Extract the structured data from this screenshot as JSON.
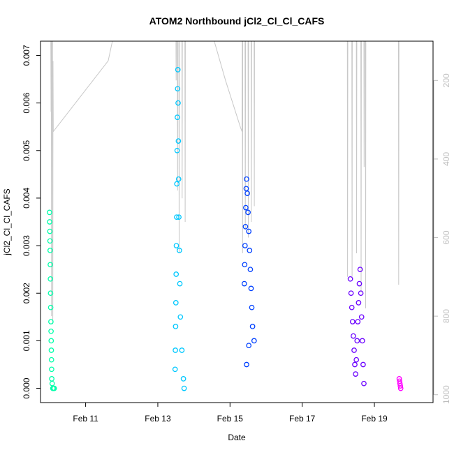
{
  "chart_data": {
    "type": "scatter",
    "title": "ATOM2 Northbound jCl2_Cl_Cl_CAFS",
    "xlabel": "Date",
    "ylabel": "jCl2_Cl_Cl_CAFS",
    "xlim": [
      "2016-02-09 18:00",
      "2016-02-20 15:00"
    ],
    "ylim": [
      -0.0003,
      0.0073
    ],
    "x_ticks": [
      {
        "label": "Feb 11",
        "value": "2016-02-11"
      },
      {
        "label": "Feb 13",
        "value": "2016-02-13"
      },
      {
        "label": "Feb 15",
        "value": "2016-02-15"
      },
      {
        "label": "Feb 17",
        "value": "2016-02-17"
      },
      {
        "label": "Feb 19",
        "value": "2016-02-19"
      }
    ],
    "y_ticks": [
      "0.000",
      "0.001",
      "0.002",
      "0.003",
      "0.004",
      "0.005",
      "0.006",
      "0.007"
    ],
    "right_axis": {
      "reversed": true,
      "ylim": [
        1020,
        100
      ],
      "ticks": [
        "200",
        "400",
        "600",
        "800",
        "1000"
      ],
      "color": "#bebebe"
    },
    "grid": false,
    "legend": "none",
    "series": [
      {
        "color": "#00ffaa",
        "points": [
          [
            "2016-02-10 00:00",
            0.0037
          ],
          [
            "2016-02-10 00:06",
            0.0035
          ],
          [
            "2016-02-10 00:12",
            0.0033
          ],
          [
            "2016-02-10 00:18",
            0.0031
          ],
          [
            "2016-02-10 00:24",
            0.0029
          ],
          [
            "2016-02-10 00:30",
            0.0026
          ],
          [
            "2016-02-10 00:36",
            0.0023
          ],
          [
            "2016-02-10 00:42",
            0.002
          ],
          [
            "2016-02-10 00:48",
            0.0017
          ],
          [
            "2016-02-10 00:54",
            0.0014
          ],
          [
            "2016-02-10 01:00",
            0.0012
          ],
          [
            "2016-02-10 01:06",
            0.001
          ],
          [
            "2016-02-10 01:12",
            0.0008
          ],
          [
            "2016-02-10 01:18",
            0.0006
          ],
          [
            "2016-02-10 01:24",
            0.0004
          ],
          [
            "2016-02-10 01:30",
            0.0002
          ],
          [
            "2016-02-10 01:45",
            0.0001
          ],
          [
            "2016-02-10 02:10",
            0.0
          ],
          [
            "2016-02-10 02:40",
            0.0
          ],
          [
            "2016-02-10 03:10",
            0.0
          ]
        ]
      },
      {
        "color": "#00c8ff",
        "points": [
          [
            "2016-02-13 11:30",
            0.0004
          ],
          [
            "2016-02-13 11:40",
            0.0008
          ],
          [
            "2016-02-13 11:50",
            0.0013
          ],
          [
            "2016-02-13 12:00",
            0.0018
          ],
          [
            "2016-02-13 12:10",
            0.0024
          ],
          [
            "2016-02-13 12:20",
            0.003
          ],
          [
            "2016-02-13 12:30",
            0.0036
          ],
          [
            "2016-02-13 12:40",
            0.0043
          ],
          [
            "2016-02-13 12:50",
            0.005
          ],
          [
            "2016-02-13 13:00",
            0.0057
          ],
          [
            "2016-02-13 13:10",
            0.0063
          ],
          [
            "2016-02-13 13:20",
            0.0067
          ],
          [
            "2016-02-13 13:30",
            0.006
          ],
          [
            "2016-02-13 13:40",
            0.0052
          ],
          [
            "2016-02-13 13:50",
            0.0044
          ],
          [
            "2016-02-13 14:00",
            0.0036
          ],
          [
            "2016-02-13 14:20",
            0.0029
          ],
          [
            "2016-02-13 14:40",
            0.0022
          ],
          [
            "2016-02-13 15:00",
            0.0015
          ],
          [
            "2016-02-13 16:00",
            0.0008
          ],
          [
            "2016-02-13 17:00",
            0.0002
          ],
          [
            "2016-02-13 17:30",
            0.0
          ]
        ]
      },
      {
        "color": "#0040ff",
        "points": [
          [
            "2016-02-15 09:30",
            0.0022
          ],
          [
            "2016-02-15 09:45",
            0.0026
          ],
          [
            "2016-02-15 10:00",
            0.003
          ],
          [
            "2016-02-15 10:15",
            0.0034
          ],
          [
            "2016-02-15 10:30",
            0.0038
          ],
          [
            "2016-02-15 10:45",
            0.0042
          ],
          [
            "2016-02-15 11:00",
            0.0044
          ],
          [
            "2016-02-15 11:30",
            0.0041
          ],
          [
            "2016-02-15 12:00",
            0.0037
          ],
          [
            "2016-02-15 12:30",
            0.0033
          ],
          [
            "2016-02-15 13:00",
            0.0029
          ],
          [
            "2016-02-15 13:30",
            0.0025
          ],
          [
            "2016-02-15 14:00",
            0.0021
          ],
          [
            "2016-02-15 14:30",
            0.0017
          ],
          [
            "2016-02-15 15:00",
            0.0013
          ],
          [
            "2016-02-15 16:00",
            0.001
          ],
          [
            "2016-02-15 11:00",
            0.0005
          ],
          [
            "2016-02-15 12:30",
            0.0009
          ]
        ]
      },
      {
        "color": "#6a00ff",
        "points": [
          [
            "2016-02-18 08:00",
            0.0023
          ],
          [
            "2016-02-18 08:30",
            0.002
          ],
          [
            "2016-02-18 09:00",
            0.0017
          ],
          [
            "2016-02-18 09:30",
            0.0014
          ],
          [
            "2016-02-18 10:00",
            0.0011
          ],
          [
            "2016-02-18 10:30",
            0.0008
          ],
          [
            "2016-02-18 11:00",
            0.0005
          ],
          [
            "2016-02-18 11:30",
            0.0003
          ],
          [
            "2016-02-18 12:00",
            0.0006
          ],
          [
            "2016-02-18 12:30",
            0.001
          ],
          [
            "2016-02-18 13:00",
            0.0014
          ],
          [
            "2016-02-18 13:30",
            0.0018
          ],
          [
            "2016-02-18 14:00",
            0.0022
          ],
          [
            "2016-02-18 14:30",
            0.0025
          ],
          [
            "2016-02-18 15:00",
            0.002
          ],
          [
            "2016-02-18 15:30",
            0.0015
          ],
          [
            "2016-02-18 16:00",
            0.001
          ],
          [
            "2016-02-18 16:30",
            0.0005
          ],
          [
            "2016-02-18 17:00",
            0.0001
          ]
        ]
      },
      {
        "color": "#ff00ff",
        "points": [
          [
            "2016-02-19 16:30",
            0.0002
          ],
          [
            "2016-02-19 16:45",
            0.00015
          ],
          [
            "2016-02-19 17:00",
            0.0001
          ],
          [
            "2016-02-19 17:15",
            5e-05
          ],
          [
            "2016-02-19 17:30",
            0.0
          ]
        ]
      }
    ],
    "altitude_line": {
      "color": "#c8c8c8",
      "points": [
        [
          "2016-02-10 00:50",
          80
        ],
        [
          "2016-02-10 01:00",
          280
        ],
        [
          "2016-02-10 01:10",
          90
        ],
        [
          "2016-02-10 01:20",
          800
        ],
        [
          "2016-02-10 01:30",
          110
        ],
        [
          "2016-02-10 02:00",
          90
        ],
        [
          "2016-02-10 02:10",
          820
        ],
        [
          "2016-02-10 02:20",
          150
        ],
        [
          "2016-02-10 02:30",
          330
        ],
        [
          "2016-02-11 15:00",
          150
        ],
        [
          "2016-02-11 20:00",
          60
        ],
        [
          "2016-02-13 12:00",
          60
        ],
        [
          "2016-02-13 12:10",
          200
        ],
        [
          "2016-02-13 12:20",
          60
        ],
        [
          "2016-02-13 13:00",
          80
        ],
        [
          "2016-02-13 13:10",
          480
        ],
        [
          "2016-02-13 13:20",
          60
        ],
        [
          "2016-02-13 14:00",
          60
        ],
        [
          "2016-02-13 14:10",
          640
        ],
        [
          "2016-02-13 14:20",
          90
        ],
        [
          "2016-02-13 16:00",
          60
        ],
        [
          "2016-02-13 16:10",
          500
        ],
        [
          "2016-02-13 16:20",
          60
        ],
        [
          "2016-02-13 18:00",
          80
        ],
        [
          "2016-02-13 18:10",
          560
        ],
        [
          "2016-02-13 18:20",
          80
        ],
        [
          "2016-02-14 12:00",
          80
        ],
        [
          "2016-02-14 21:00",
          200
        ],
        [
          "2016-02-15 07:00",
          320
        ],
        [
          "2016-02-15 08:00",
          330
        ],
        [
          "2016-02-15 08:10",
          80
        ],
        [
          "2016-02-15 08:20",
          640
        ],
        [
          "2016-02-15 08:30",
          80
        ],
        [
          "2016-02-15 10:00",
          80
        ],
        [
          "2016-02-15 10:10",
          580
        ],
        [
          "2016-02-15 10:20",
          80
        ],
        [
          "2016-02-15 12:00",
          80
        ],
        [
          "2016-02-15 12:10",
          600
        ],
        [
          "2016-02-15 12:20",
          80
        ],
        [
          "2016-02-15 14:00",
          80
        ],
        [
          "2016-02-15 14:10",
          560
        ],
        [
          "2016-02-15 14:20",
          80
        ],
        [
          "2016-02-15 16:00",
          80
        ],
        [
          "2016-02-15 16:10",
          520
        ],
        [
          "2016-02-15 16:20",
          80
        ],
        [
          "2016-02-18 06:00",
          80
        ],
        [
          "2016-02-18 06:10",
          700
        ],
        [
          "2016-02-18 06:20",
          80
        ],
        [
          "2016-02-18 09:00",
          80
        ],
        [
          "2016-02-18 09:10",
          700
        ],
        [
          "2016-02-18 09:20",
          80
        ],
        [
          "2016-02-18 12:00",
          80
        ],
        [
          "2016-02-18 12:10",
          640
        ],
        [
          "2016-02-18 12:20",
          80
        ],
        [
          "2016-02-18 15:00",
          80
        ],
        [
          "2016-02-18 15:10",
          740
        ],
        [
          "2016-02-18 15:20",
          80
        ],
        [
          "2016-02-18 17:00",
          80
        ],
        [
          "2016-02-18 17:10",
          420
        ],
        [
          "2016-02-18 17:20",
          80
        ],
        [
          "2016-02-18 18:00",
          80
        ],
        [
          "2016-02-18 18:10",
          780
        ],
        [
          "2016-02-18 18:20",
          80
        ],
        [
          "2016-02-19 16:00",
          80
        ],
        [
          "2016-02-19 16:10",
          720
        ],
        [
          "2016-02-19 16:20",
          80
        ]
      ]
    }
  }
}
